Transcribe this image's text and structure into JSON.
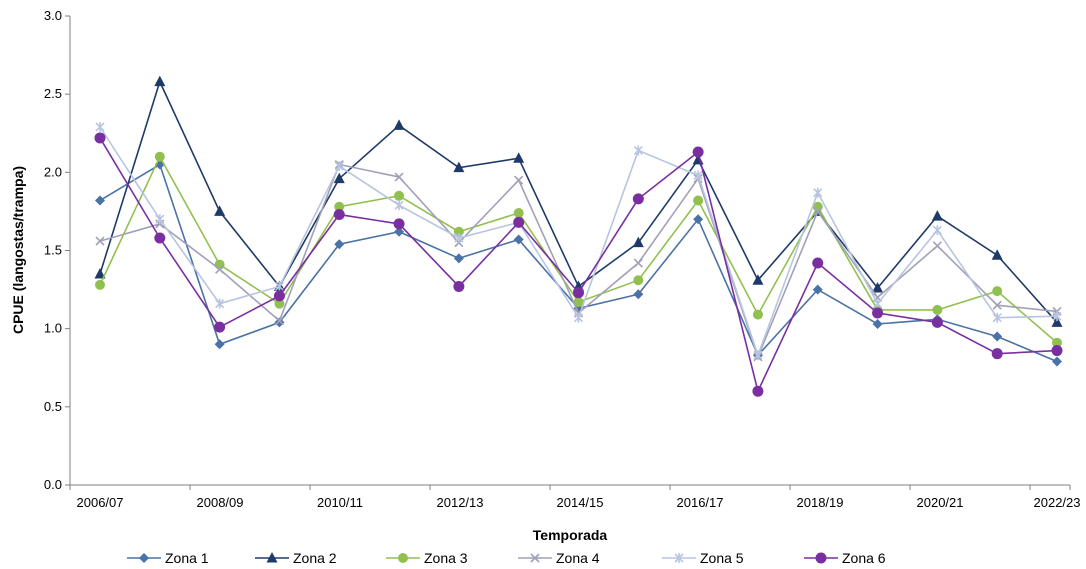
{
  "chart_data": {
    "type": "line",
    "title": "",
    "xlabel": "Temporada",
    "ylabel": "CPUE (langostas/trampa)",
    "ylim": [
      0,
      3
    ],
    "yticks": [
      "0.0",
      "0.5",
      "1.0",
      "1.5",
      "2.0",
      "2.5",
      "3.0"
    ],
    "categories": [
      "2006/07",
      "2007/08",
      "2008/09",
      "2009/10",
      "2010/11",
      "2011/12",
      "2012/13",
      "2013/14",
      "2014/15",
      "2015/16",
      "2016/17",
      "2017/18",
      "2018/19",
      "2019/20",
      "2020/21",
      "2021/22",
      "2022/23"
    ],
    "xtick_labels_shown": [
      "2006/07",
      "2008/09",
      "2010/11",
      "2012/13",
      "2014/15",
      "2016/17",
      "2018/19",
      "2020/21",
      "2022/23"
    ],
    "grid": false,
    "legend_position": "bottom",
    "series": [
      {
        "name": "Zona 1",
        "color": "#4a72a6",
        "marker": "diamond",
        "values": [
          1.82,
          2.05,
          0.9,
          1.04,
          1.54,
          1.62,
          1.45,
          1.57,
          1.13,
          1.22,
          1.7,
          0.83,
          1.25,
          1.03,
          1.06,
          0.95,
          0.79
        ]
      },
      {
        "name": "Zona 2",
        "color": "#1f3a68",
        "marker": "triangle",
        "values": [
          1.35,
          2.58,
          1.75,
          1.27,
          1.96,
          2.3,
          2.03,
          2.09,
          1.27,
          1.55,
          2.08,
          1.31,
          1.75,
          1.26,
          1.72,
          1.47,
          1.04
        ]
      },
      {
        "name": "Zona 3",
        "color": "#92c050",
        "marker": "circle",
        "values": [
          1.28,
          2.1,
          1.41,
          1.16,
          1.78,
          1.85,
          1.62,
          1.74,
          1.17,
          1.31,
          1.82,
          1.09,
          1.78,
          1.12,
          1.12,
          1.24,
          0.91
        ]
      },
      {
        "name": "Zona 4",
        "color": "#a0a0b8",
        "marker": "x",
        "values": [
          1.56,
          1.67,
          1.38,
          1.05,
          2.05,
          1.97,
          1.55,
          1.95,
          1.1,
          1.42,
          1.96,
          0.82,
          1.75,
          1.2,
          1.53,
          1.15,
          1.11
        ]
      },
      {
        "name": "Zona 5",
        "color": "#b8c4e0",
        "marker": "star",
        "values": [
          2.29,
          1.7,
          1.16,
          1.27,
          2.04,
          1.79,
          1.58,
          1.68,
          1.07,
          2.14,
          1.98,
          0.83,
          1.87,
          1.16,
          1.63,
          1.07,
          1.08
        ]
      },
      {
        "name": "Zona 6",
        "color": "#7a2fa0",
        "marker": "bigcircle",
        "values": [
          2.22,
          1.58,
          1.01,
          1.21,
          1.73,
          1.67,
          1.27,
          1.68,
          1.23,
          1.83,
          2.13,
          0.6,
          1.42,
          1.1,
          1.04,
          0.84,
          0.86
        ]
      }
    ]
  }
}
